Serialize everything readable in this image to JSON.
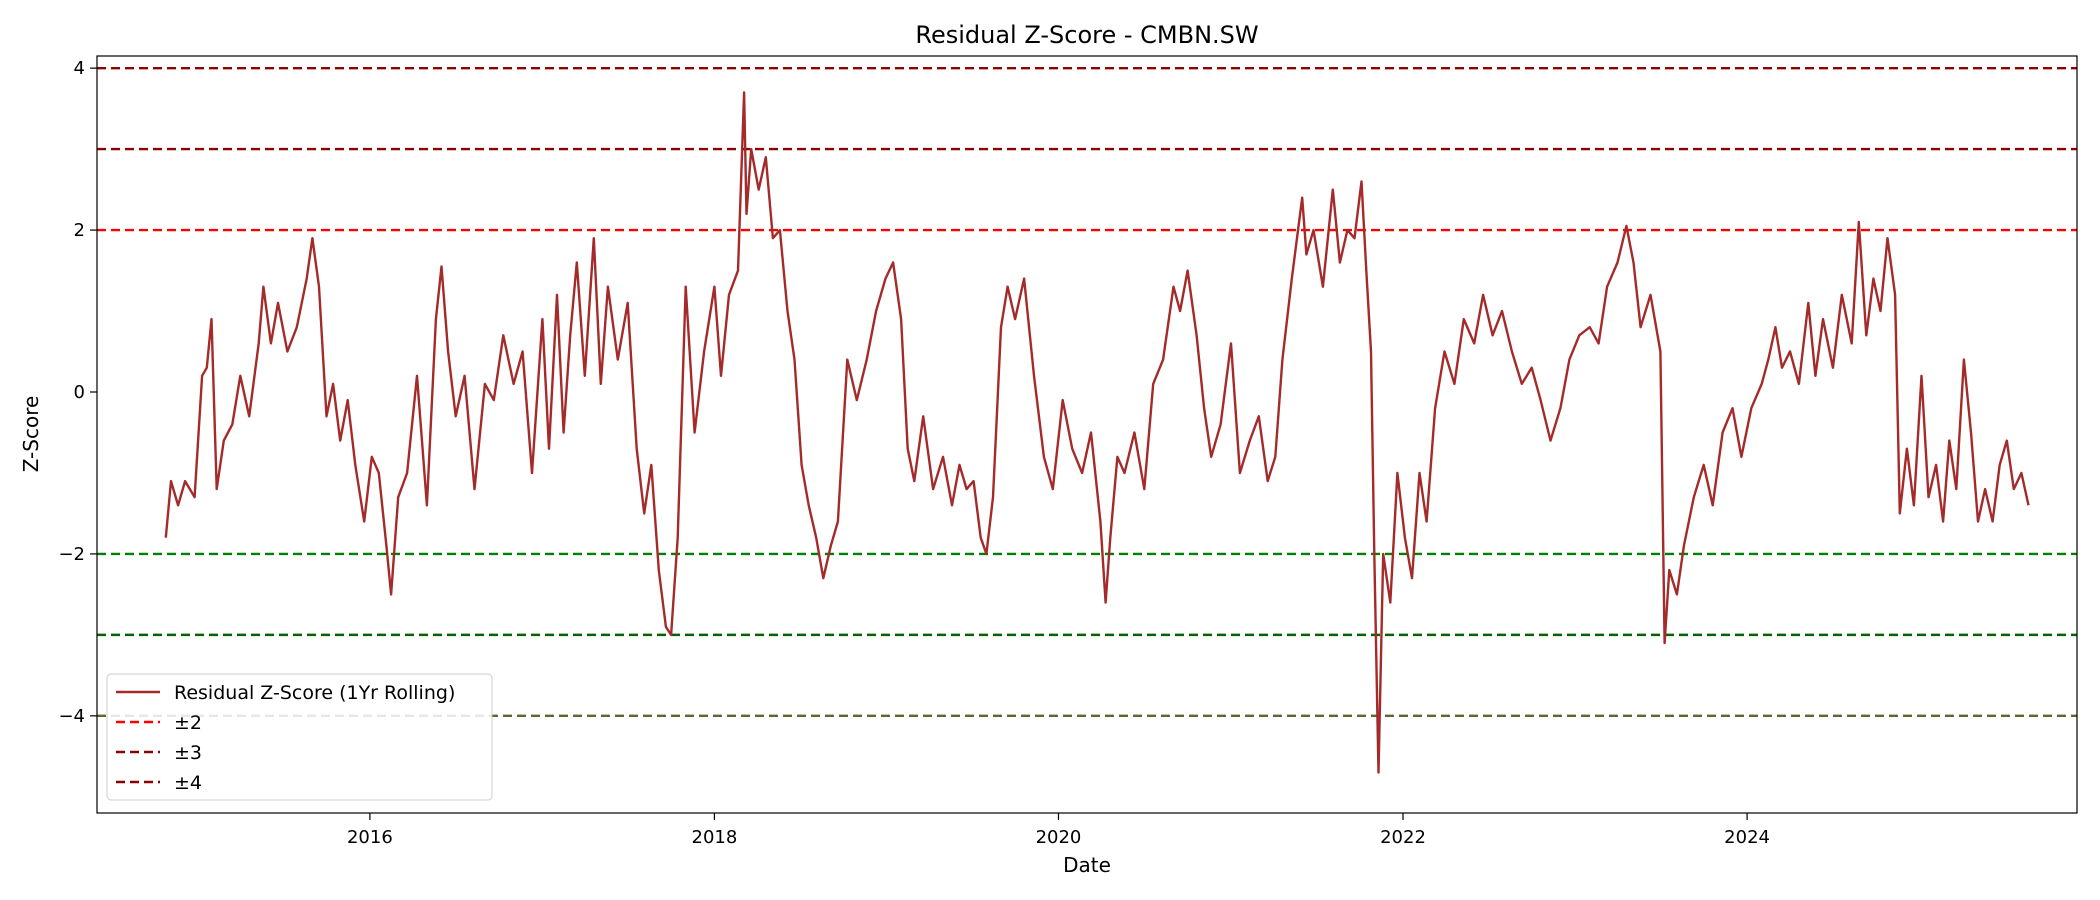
{
  "chart_data": {
    "type": "line",
    "title": "Residual Z-Score - CMBN.SW",
    "xlabel": "Date",
    "ylabel": "Z-Score",
    "xlim": [
      "2014-06-01",
      "2025-12-01"
    ],
    "ylim": [
      -5.2,
      4.15
    ],
    "xticks": [
      {
        "value": "2016-01-01",
        "label": "2016"
      },
      {
        "value": "2018-01-01",
        "label": "2018"
      },
      {
        "value": "2020-01-01",
        "label": "2020"
      },
      {
        "value": "2022-01-01",
        "label": "2022"
      },
      {
        "value": "2024-01-01",
        "label": "2024"
      }
    ],
    "yticks": [
      {
        "value": 4,
        "label": "4"
      },
      {
        "value": 2,
        "label": "2"
      },
      {
        "value": 0,
        "label": "0"
      },
      {
        "value": -2,
        "label": "−2"
      },
      {
        "value": -4,
        "label": "−4"
      }
    ],
    "grid": false,
    "legend_position": "lower-left",
    "series": [
      {
        "name": "Residual Z-Score (1Yr Rolling)",
        "color": "#a52a2a",
        "style": "solid",
        "points": [
          [
            "2014-10-25",
            -1.8
          ],
          [
            "2014-11-05",
            -1.1
          ],
          [
            "2014-11-20",
            -1.4
          ],
          [
            "2014-12-05",
            -1.1
          ],
          [
            "2014-12-25",
            -1.3
          ],
          [
            "2015-01-10",
            0.2
          ],
          [
            "2015-01-20",
            0.3
          ],
          [
            "2015-01-30",
            0.9
          ],
          [
            "2015-02-10",
            -1.2
          ],
          [
            "2015-02-25",
            -0.6
          ],
          [
            "2015-03-15",
            -0.4
          ],
          [
            "2015-04-01",
            0.2
          ],
          [
            "2015-04-20",
            -0.3
          ],
          [
            "2015-05-10",
            0.6
          ],
          [
            "2015-05-20",
            1.3
          ],
          [
            "2015-06-05",
            0.6
          ],
          [
            "2015-06-20",
            1.1
          ],
          [
            "2015-07-10",
            0.5
          ],
          [
            "2015-07-30",
            0.8
          ],
          [
            "2015-08-20",
            1.4
          ],
          [
            "2015-09-01",
            1.9
          ],
          [
            "2015-09-15",
            1.3
          ],
          [
            "2015-10-01",
            -0.3
          ],
          [
            "2015-10-15",
            0.1
          ],
          [
            "2015-10-30",
            -0.6
          ],
          [
            "2015-11-15",
            -0.1
          ],
          [
            "2015-12-01",
            -0.9
          ],
          [
            "2015-12-20",
            -1.6
          ],
          [
            "2016-01-05",
            -0.8
          ],
          [
            "2016-01-20",
            -1.0
          ],
          [
            "2016-02-05",
            -1.9
          ],
          [
            "2016-02-15",
            -2.5
          ],
          [
            "2016-03-01",
            -1.3
          ],
          [
            "2016-03-20",
            -1.0
          ],
          [
            "2016-04-10",
            0.2
          ],
          [
            "2016-05-01",
            -1.4
          ],
          [
            "2016-05-20",
            0.9
          ],
          [
            "2016-06-01",
            1.55
          ],
          [
            "2016-06-15",
            0.5
          ],
          [
            "2016-07-01",
            -0.3
          ],
          [
            "2016-07-20",
            0.2
          ],
          [
            "2016-08-10",
            -1.2
          ],
          [
            "2016-09-01",
            0.1
          ],
          [
            "2016-09-20",
            -0.1
          ],
          [
            "2016-10-10",
            0.7
          ],
          [
            "2016-11-01",
            0.1
          ],
          [
            "2016-11-20",
            0.5
          ],
          [
            "2016-12-10",
            -1.0
          ],
          [
            "2017-01-01",
            0.9
          ],
          [
            "2017-01-15",
            -0.7
          ],
          [
            "2017-02-01",
            1.2
          ],
          [
            "2017-02-15",
            -0.5
          ],
          [
            "2017-03-01",
            0.7
          ],
          [
            "2017-03-15",
            1.6
          ],
          [
            "2017-04-01",
            0.2
          ],
          [
            "2017-04-20",
            1.9
          ],
          [
            "2017-05-05",
            0.1
          ],
          [
            "2017-05-20",
            1.3
          ],
          [
            "2017-06-10",
            0.4
          ],
          [
            "2017-07-01",
            1.1
          ],
          [
            "2017-07-20",
            -0.7
          ],
          [
            "2017-08-05",
            -1.5
          ],
          [
            "2017-08-20",
            -0.9
          ],
          [
            "2017-09-05",
            -2.2
          ],
          [
            "2017-09-20",
            -2.9
          ],
          [
            "2017-10-01",
            -3.0
          ],
          [
            "2017-10-15",
            -1.8
          ],
          [
            "2017-11-01",
            1.3
          ],
          [
            "2017-11-20",
            -0.5
          ],
          [
            "2017-12-10",
            0.5
          ],
          [
            "2018-01-01",
            1.3
          ],
          [
            "2018-01-15",
            0.2
          ],
          [
            "2018-02-01",
            1.2
          ],
          [
            "2018-02-20",
            1.5
          ],
          [
            "2018-03-05",
            3.7
          ],
          [
            "2018-03-10",
            2.2
          ],
          [
            "2018-03-20",
            3.0
          ],
          [
            "2018-04-05",
            2.5
          ],
          [
            "2018-04-20",
            2.9
          ],
          [
            "2018-05-05",
            1.9
          ],
          [
            "2018-05-20",
            2.0
          ],
          [
            "2018-06-05",
            1.0
          ],
          [
            "2018-06-20",
            0.4
          ],
          [
            "2018-07-05",
            -0.9
          ],
          [
            "2018-07-20",
            -1.4
          ],
          [
            "2018-08-05",
            -1.8
          ],
          [
            "2018-08-20",
            -2.3
          ],
          [
            "2018-09-05",
            -1.9
          ],
          [
            "2018-09-20",
            -1.6
          ],
          [
            "2018-10-10",
            0.4
          ],
          [
            "2018-10-30",
            -0.1
          ],
          [
            "2018-11-20",
            0.4
          ],
          [
            "2018-12-10",
            1.0
          ],
          [
            "2018-12-30",
            1.4
          ],
          [
            "2019-01-15",
            1.6
          ],
          [
            "2019-02-01",
            0.9
          ],
          [
            "2019-02-15",
            -0.7
          ],
          [
            "2019-03-01",
            -1.1
          ],
          [
            "2019-03-20",
            -0.3
          ],
          [
            "2019-04-10",
            -1.2
          ],
          [
            "2019-05-01",
            -0.8
          ],
          [
            "2019-05-20",
            -1.4
          ],
          [
            "2019-06-05",
            -0.9
          ],
          [
            "2019-06-20",
            -1.2
          ],
          [
            "2019-07-05",
            -1.1
          ],
          [
            "2019-07-20",
            -1.8
          ],
          [
            "2019-08-01",
            -2.0
          ],
          [
            "2019-08-15",
            -1.3
          ],
          [
            "2019-09-01",
            0.8
          ],
          [
            "2019-09-15",
            1.3
          ],
          [
            "2019-10-01",
            0.9
          ],
          [
            "2019-10-20",
            1.4
          ],
          [
            "2019-11-10",
            0.2
          ],
          [
            "2019-12-01",
            -0.8
          ],
          [
            "2019-12-20",
            -1.2
          ],
          [
            "2020-01-10",
            -0.1
          ],
          [
            "2020-01-30",
            -0.7
          ],
          [
            "2020-02-20",
            -1.0
          ],
          [
            "2020-03-10",
            -0.5
          ],
          [
            "2020-03-30",
            -1.6
          ],
          [
            "2020-04-10",
            -2.6
          ],
          [
            "2020-04-20",
            -1.8
          ],
          [
            "2020-05-05",
            -0.8
          ],
          [
            "2020-05-20",
            -1.0
          ],
          [
            "2020-06-10",
            -0.5
          ],
          [
            "2020-07-01",
            -1.2
          ],
          [
            "2020-07-20",
            0.1
          ],
          [
            "2020-08-10",
            0.4
          ],
          [
            "2020-09-01",
            1.3
          ],
          [
            "2020-09-15",
            1.0
          ],
          [
            "2020-10-01",
            1.5
          ],
          [
            "2020-10-20",
            0.7
          ],
          [
            "2020-11-05",
            -0.2
          ],
          [
            "2020-11-20",
            -0.8
          ],
          [
            "2020-12-10",
            -0.4
          ],
          [
            "2021-01-01",
            0.6
          ],
          [
            "2021-01-20",
            -1.0
          ],
          [
            "2021-02-10",
            -0.6
          ],
          [
            "2021-03-01",
            -0.3
          ],
          [
            "2021-03-20",
            -1.1
          ],
          [
            "2021-04-05",
            -0.8
          ],
          [
            "2021-04-20",
            0.4
          ],
          [
            "2021-05-10",
            1.4
          ],
          [
            "2021-06-01",
            2.4
          ],
          [
            "2021-06-10",
            1.7
          ],
          [
            "2021-06-25",
            2.0
          ],
          [
            "2021-07-15",
            1.3
          ],
          [
            "2021-08-05",
            2.5
          ],
          [
            "2021-08-20",
            1.6
          ],
          [
            "2021-09-05",
            2.0
          ],
          [
            "2021-09-20",
            1.9
          ],
          [
            "2021-10-05",
            2.6
          ],
          [
            "2021-10-15",
            1.5
          ],
          [
            "2021-10-25",
            0.5
          ],
          [
            "2021-11-01",
            -2.0
          ],
          [
            "2021-11-10",
            -4.7
          ],
          [
            "2021-11-20",
            -2.0
          ],
          [
            "2021-12-05",
            -2.6
          ],
          [
            "2021-12-20",
            -1.0
          ],
          [
            "2022-01-05",
            -1.8
          ],
          [
            "2022-01-20",
            -2.3
          ],
          [
            "2022-02-05",
            -1.0
          ],
          [
            "2022-02-20",
            -1.6
          ],
          [
            "2022-03-10",
            -0.2
          ],
          [
            "2022-03-30",
            0.5
          ],
          [
            "2022-04-20",
            0.1
          ],
          [
            "2022-05-10",
            0.9
          ],
          [
            "2022-06-01",
            0.6
          ],
          [
            "2022-06-20",
            1.2
          ],
          [
            "2022-07-10",
            0.7
          ],
          [
            "2022-07-30",
            1.0
          ],
          [
            "2022-08-20",
            0.5
          ],
          [
            "2022-09-10",
            0.1
          ],
          [
            "2022-10-01",
            0.3
          ],
          [
            "2022-10-20",
            -0.1
          ],
          [
            "2022-11-10",
            -0.6
          ],
          [
            "2022-12-01",
            -0.2
          ],
          [
            "2022-12-20",
            0.4
          ],
          [
            "2023-01-10",
            0.7
          ],
          [
            "2023-02-01",
            0.8
          ],
          [
            "2023-02-20",
            0.6
          ],
          [
            "2023-03-10",
            1.3
          ],
          [
            "2023-04-01",
            1.6
          ],
          [
            "2023-04-20",
            2.05
          ],
          [
            "2023-05-05",
            1.6
          ],
          [
            "2023-05-20",
            0.8
          ],
          [
            "2023-06-10",
            1.2
          ],
          [
            "2023-07-01",
            0.5
          ],
          [
            "2023-07-10",
            -3.1
          ],
          [
            "2023-07-20",
            -2.2
          ],
          [
            "2023-08-05",
            -2.5
          ],
          [
            "2023-08-20",
            -1.9
          ],
          [
            "2023-09-10",
            -1.3
          ],
          [
            "2023-10-01",
            -0.9
          ],
          [
            "2023-10-20",
            -1.4
          ],
          [
            "2023-11-10",
            -0.5
          ],
          [
            "2023-12-01",
            -0.2
          ],
          [
            "2023-12-20",
            -0.8
          ],
          [
            "2024-01-10",
            -0.2
          ],
          [
            "2024-02-01",
            0.1
          ],
          [
            "2024-02-15",
            0.4
          ],
          [
            "2024-03-01",
            0.8
          ],
          [
            "2024-03-15",
            0.3
          ],
          [
            "2024-04-01",
            0.5
          ],
          [
            "2024-04-20",
            0.1
          ],
          [
            "2024-05-10",
            1.1
          ],
          [
            "2024-05-25",
            0.2
          ],
          [
            "2024-06-10",
            0.9
          ],
          [
            "2024-07-01",
            0.3
          ],
          [
            "2024-07-20",
            1.2
          ],
          [
            "2024-08-10",
            0.6
          ],
          [
            "2024-08-25",
            2.1
          ],
          [
            "2024-09-10",
            0.7
          ],
          [
            "2024-09-25",
            1.4
          ],
          [
            "2024-10-10",
            1.0
          ],
          [
            "2024-10-25",
            1.9
          ],
          [
            "2024-11-10",
            1.2
          ],
          [
            "2024-11-20",
            -1.5
          ],
          [
            "2024-12-05",
            -0.7
          ],
          [
            "2024-12-20",
            -1.4
          ],
          [
            "2025-01-05",
            0.2
          ],
          [
            "2025-01-20",
            -1.3
          ],
          [
            "2025-02-05",
            -0.9
          ],
          [
            "2025-02-20",
            -1.6
          ],
          [
            "2025-03-05",
            -0.6
          ],
          [
            "2025-03-20",
            -1.2
          ],
          [
            "2025-04-05",
            0.4
          ],
          [
            "2025-04-20",
            -0.5
          ],
          [
            "2025-05-05",
            -1.6
          ],
          [
            "2025-05-20",
            -1.2
          ],
          [
            "2025-06-05",
            -1.6
          ],
          [
            "2025-06-20",
            -0.9
          ],
          [
            "2025-07-05",
            -0.6
          ],
          [
            "2025-07-20",
            -1.2
          ],
          [
            "2025-08-05",
            -1.0
          ],
          [
            "2025-08-20",
            -1.4
          ]
        ]
      },
      {
        "name": "±2",
        "color": "#ff0000",
        "style": "dashed",
        "values": [
          2
        ]
      },
      {
        "name": "±3",
        "color": "#8b0000",
        "style": "dashed",
        "values": [
          3
        ]
      },
      {
        "name": "±4",
        "color": "#8b0000",
        "style": "dashed",
        "values": [
          4
        ]
      }
    ],
    "reference_lines": [
      {
        "y": 4,
        "color": "#8b0000"
      },
      {
        "y": 3,
        "color": "#8b0000"
      },
      {
        "y": 2,
        "color": "#ff0000"
      },
      {
        "y": -2,
        "color": "#008000"
      },
      {
        "y": -3,
        "color": "#006400"
      },
      {
        "y": -4,
        "color": "#556b2f"
      }
    ]
  }
}
